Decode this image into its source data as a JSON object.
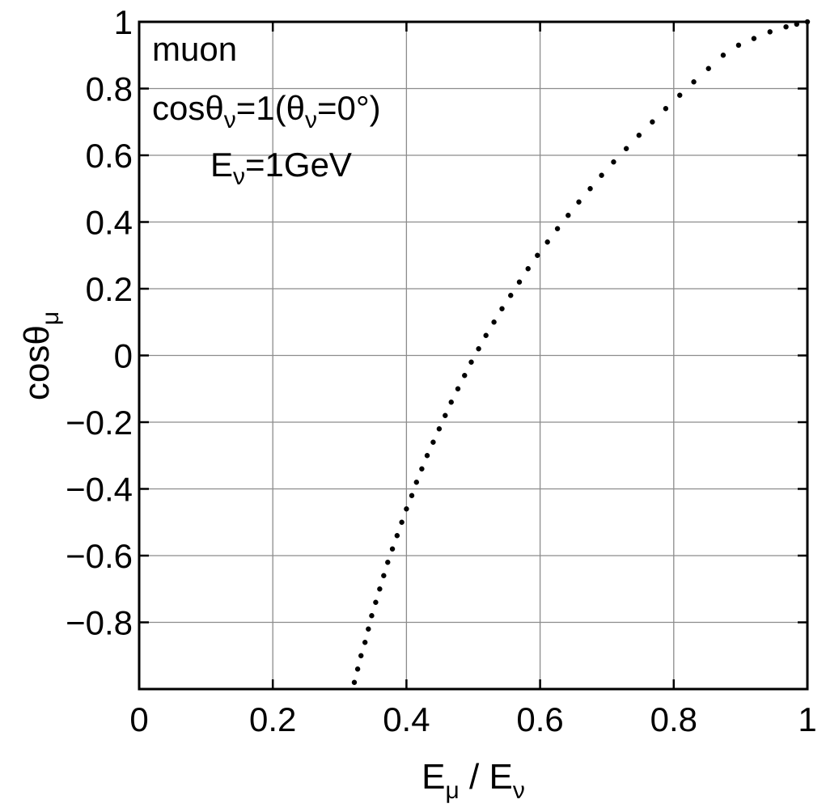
{
  "chart_data": {
    "type": "scatter",
    "title": "",
    "xlabel": {
      "main": "E",
      "sub1": "μ",
      "mid": " / E",
      "sub2": "ν"
    },
    "ylabel": {
      "main": "cosθ",
      "sub": "μ"
    },
    "xlim": [
      0,
      1
    ],
    "ylim": [
      -1,
      1
    ],
    "grid": true,
    "x_ticks": [
      0,
      0.2,
      0.4,
      0.6,
      0.8,
      1
    ],
    "x_tick_labels": [
      "0",
      "0.2",
      "0.4",
      "0.6",
      "0.8",
      "1"
    ],
    "y_ticks": [
      -0.8,
      -0.6,
      -0.4,
      -0.2,
      0,
      0.2,
      0.4,
      0.6,
      0.8,
      1
    ],
    "y_tick_labels": [
      "−0.8",
      "−0.6",
      "−0.4",
      "−0.2",
      "0",
      "0.2",
      "0.4",
      "0.6",
      "0.8",
      "1"
    ],
    "annotations": {
      "particle": "muon",
      "angle": {
        "t1": "cosθ",
        "s1": "ν",
        "t2": "=1(θ",
        "s2": "ν",
        "t3": "=0°)"
      },
      "energy": {
        "t1": "E",
        "s1": "ν",
        "t2": "=1GeV"
      }
    },
    "series": [
      {
        "marker_color": "#000000",
        "x": [
          0.322,
          0.327,
          0.332,
          0.338,
          0.343,
          0.348,
          0.354,
          0.36,
          0.366,
          0.372,
          0.379,
          0.386,
          0.393,
          0.4,
          0.408,
          0.415,
          0.423,
          0.431,
          0.44,
          0.449,
          0.458,
          0.467,
          0.477,
          0.487,
          0.497,
          0.508,
          0.519,
          0.531,
          0.543,
          0.556,
          0.569,
          0.582,
          0.596,
          0.611,
          0.626,
          0.642,
          0.658,
          0.675,
          0.692,
          0.71,
          0.729,
          0.748,
          0.768,
          0.788,
          0.809,
          0.83,
          0.852,
          0.874,
          0.897,
          0.92,
          0.944,
          0.968,
          0.984,
          1.0
        ],
        "y": [
          -0.98,
          -0.94,
          -0.9,
          -0.86,
          -0.82,
          -0.78,
          -0.74,
          -0.7,
          -0.66,
          -0.62,
          -0.58,
          -0.54,
          -0.5,
          -0.46,
          -0.42,
          -0.38,
          -0.34,
          -0.3,
          -0.26,
          -0.22,
          -0.18,
          -0.14,
          -0.1,
          -0.06,
          -0.02,
          0.02,
          0.06,
          0.1,
          0.14,
          0.18,
          0.22,
          0.26,
          0.3,
          0.34,
          0.38,
          0.42,
          0.46,
          0.5,
          0.54,
          0.58,
          0.62,
          0.66,
          0.7,
          0.74,
          0.78,
          0.82,
          0.86,
          0.9,
          0.93,
          0.95,
          0.97,
          0.985,
          0.993,
          1.0
        ]
      }
    ]
  }
}
